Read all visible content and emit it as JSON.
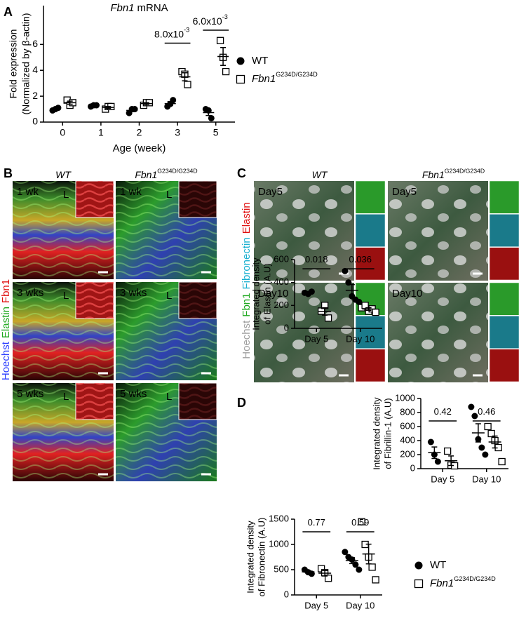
{
  "panel_labels": [
    "A",
    "B",
    "C",
    "D"
  ],
  "chart_data": [
    {
      "type": "scatter",
      "title": {
        "italic": "Fbn1",
        "text": "mRNA"
      },
      "categories": [
        "0",
        "1",
        "2",
        "3",
        "5"
      ],
      "xlabel": "Age (week)",
      "ylabel": [
        "Fold expression",
        "(Normalized by β-actin)"
      ],
      "ylim": [
        0,
        9
      ],
      "yticks": [
        0,
        2,
        4,
        6
      ],
      "legend": true,
      "series": [
        {
          "name": "WT",
          "marker": "circle",
          "color": "#000000",
          "values": [
            [
              0.9,
              1.0,
              1.1
            ],
            [
              1.2,
              1.3,
              1.3
            ],
            [
              0.7,
              1.0,
              1.0
            ],
            [
              1.2,
              1.4,
              1.7
            ],
            [
              1.0,
              0.9,
              0.3
            ]
          ],
          "mean": [
            1.0,
            1.27,
            0.9,
            1.43,
            0.73
          ],
          "sem": [
            0.06,
            0.03,
            0.1,
            0.15,
            0.22
          ]
        },
        {
          "name": "Fbn1",
          "name_sup": "G234D/G234D",
          "marker": "square",
          "color": "#000000",
          "values": [
            [
              1.7,
              1.3,
              1.5
            ],
            [
              1.0,
              1.2,
              1.2
            ],
            [
              1.3,
              1.5,
              1.5
            ],
            [
              3.9,
              3.7,
              2.9
            ],
            [
              6.3,
              5.0,
              3.9
            ]
          ],
          "mean": [
            1.5,
            1.13,
            1.43,
            3.5,
            5.07
          ],
          "sem": [
            0.12,
            0.07,
            0.07,
            0.31,
            0.69
          ]
        }
      ],
      "annotations": [
        {
          "text": "8.0x10",
          "sup": "-3",
          "category": "3",
          "y": 6.1
        },
        {
          "text": "6.0x10",
          "sup": "-3",
          "category": "5",
          "y": 7.1
        }
      ]
    },
    {
      "type": "scatter",
      "categories": [
        "Day 5",
        "Day 10"
      ],
      "ylabel": [
        "Integrated density",
        "of Elastin (A.U)"
      ],
      "ylim": [
        0,
        600
      ],
      "yticks": [
        0,
        200,
        400,
        600
      ],
      "legend": false,
      "series": [
        {
          "marker": "circle",
          "color": "#000000",
          "values": [
            [
              310,
              300,
              320
            ],
            [
              500,
              400,
              280,
              250,
              230
            ]
          ],
          "mean": [
            310,
            332
          ],
          "sem": [
            6,
            50
          ]
        },
        {
          "marker": "square",
          "color": "#000000",
          "values": [
            [
              150,
              200,
              90
            ],
            [
              180,
              200,
              150,
              170,
              140
            ]
          ],
          "mean": [
            147,
            168
          ],
          "sem": [
            32,
            11
          ]
        }
      ],
      "annotations": [
        {
          "text": "0.018",
          "category": "Day 5",
          "y": 520
        },
        {
          "text": "0.036",
          "category": "Day 10",
          "y": 520
        }
      ]
    },
    {
      "type": "scatter",
      "categories": [
        "Day 5",
        "Day 10"
      ],
      "ylabel": [
        "Integrated density",
        "of Fibrillin-1 (A.U)"
      ],
      "ylim": [
        0,
        1000
      ],
      "yticks": [
        0,
        200,
        400,
        600,
        800,
        1000
      ],
      "legend": false,
      "series": [
        {
          "marker": "circle",
          "color": "#000000",
          "values": [
            [
              380,
              200,
              100
            ],
            [
              880,
              750,
              420,
              300,
              200
            ]
          ],
          "mean": [
            227,
            510
          ],
          "sem": [
            82,
            130
          ]
        },
        {
          "marker": "square",
          "color": "#000000",
          "values": [
            [
              250,
              50,
              40
            ],
            [
              600,
              500,
              400,
              300,
              100
            ]
          ],
          "mean": [
            113,
            380
          ],
          "sem": [
            68,
            85
          ]
        }
      ],
      "annotations": [
        {
          "text": "0.42",
          "category": "Day 5",
          "y": 680
        },
        {
          "text": "0.46",
          "category": "Day 10",
          "y": 680
        }
      ]
    },
    {
      "type": "scatter",
      "categories": [
        "Day 5",
        "Day 10"
      ],
      "ylabel": [
        "Integrated density",
        "of Fibronectin (A.U)"
      ],
      "ylim": [
        0,
        1500
      ],
      "yticks": [
        0,
        500,
        1000,
        1500
      ],
      "legend": true,
      "series": [
        {
          "name": "WT",
          "marker": "circle",
          "color": "#000000",
          "values": [
            [
              500,
              450,
              420
            ],
            [
              850,
              750,
              700,
              600,
              500
            ]
          ],
          "mean": [
            457,
            680
          ],
          "sem": [
            23,
            60
          ]
        },
        {
          "name": "Fbn1",
          "name_sup": "G234D/G234D",
          "marker": "square",
          "color": "#000000",
          "values": [
            [
              520,
              440,
              330
            ],
            [
              1450,
              1000,
              750,
              550,
              300
            ]
          ],
          "mean": [
            430,
            810
          ],
          "sem": [
            55,
            195
          ]
        }
      ],
      "annotations": [
        {
          "text": "0.77",
          "category": "Day 5",
          "y": 1250
        },
        {
          "text": "0.59",
          "category": "Day 10",
          "y": 1250
        }
      ]
    }
  ],
  "panel_b": {
    "columns": [
      {
        "title": "WT"
      },
      {
        "title": "Fbn1",
        "title_sup": "G234D/G234D"
      }
    ],
    "rows": [
      "1 wk",
      "3 wks",
      "5 wks"
    ],
    "lumen": "L",
    "stains": [
      {
        "text": "Hoechst",
        "color": "#2a3cff"
      },
      {
        "text": "Elastin",
        "color": "#1fa81f"
      },
      {
        "text": "Fbn1",
        "color": "#e01010"
      }
    ]
  },
  "panel_c": {
    "columns": [
      {
        "title": "WT"
      },
      {
        "title": "Fbn1",
        "title_sup": "G234D/G234D"
      }
    ],
    "rows": [
      "Day5",
      "Day10"
    ],
    "stains": [
      {
        "text": "Hoechst",
        "color": "#a0a0a0"
      },
      {
        "text": "Fbn1",
        "color": "#1fa81f"
      },
      {
        "text": "Fibronectin",
        "color": "#1ab0d0"
      },
      {
        "text": "Elastin",
        "color": "#e01010"
      }
    ]
  }
}
